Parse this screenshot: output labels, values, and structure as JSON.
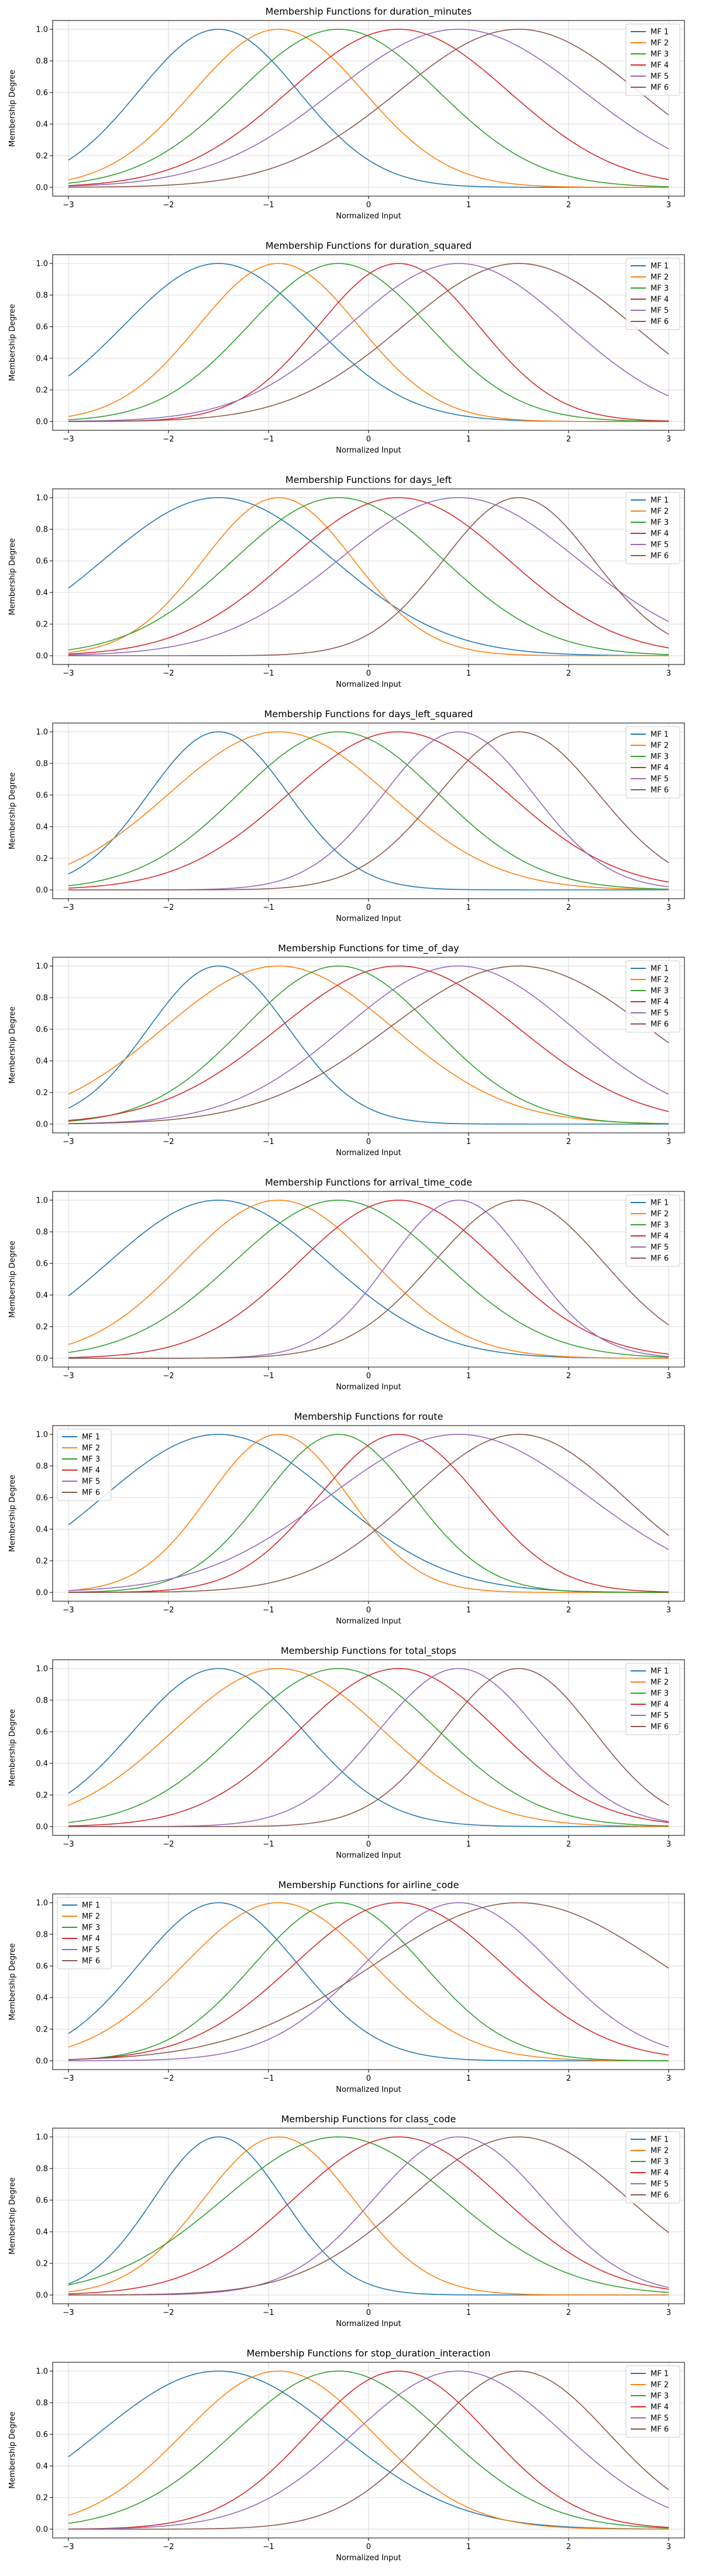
{
  "chart_data": [
    {
      "type": "line",
      "title": "Membership Functions for duration_minutes",
      "xlabel": "Normalized Input",
      "ylabel": "Membership Degree",
      "xlim": [
        -3,
        3
      ],
      "ylim": [
        0,
        1
      ],
      "x_ticks": [
        -3,
        -2,
        -1,
        0,
        1,
        2,
        3
      ],
      "y_ticks": [
        "0.0",
        "0.2",
        "0.4",
        "0.6",
        "0.8",
        "1.0"
      ],
      "grid": true,
      "legend": "upper right",
      "series": [
        {
          "name": "MF 1",
          "center": -1.5,
          "sigma": 0.8,
          "color": "#1f77b4"
        },
        {
          "name": "MF 2",
          "center": -0.9,
          "sigma": 0.85,
          "color": "#ff7f0e"
        },
        {
          "name": "MF 3",
          "center": -0.3,
          "sigma": 1.0,
          "color": "#2ca02c"
        },
        {
          "name": "MF 4",
          "center": 0.3,
          "sigma": 1.1,
          "color": "#d62728"
        },
        {
          "name": "MF 5",
          "center": 0.9,
          "sigma": 1.25,
          "color": "#9467bd"
        },
        {
          "name": "MF 6",
          "center": 1.5,
          "sigma": 1.2,
          "color": "#8c564b"
        }
      ]
    },
    {
      "type": "line",
      "title": "Membership Functions for duration_squared",
      "xlabel": "Normalized Input",
      "ylabel": "Membership Degree",
      "xlim": [
        -3,
        3
      ],
      "ylim": [
        0,
        1
      ],
      "x_ticks": [
        -3,
        -2,
        -1,
        0,
        1,
        2,
        3
      ],
      "y_ticks": [
        "0.0",
        "0.2",
        "0.4",
        "0.6",
        "0.8",
        "1.0"
      ],
      "grid": true,
      "legend": "upper right",
      "series": [
        {
          "name": "MF 1",
          "center": -1.5,
          "sigma": 0.95,
          "color": "#1f77b4"
        },
        {
          "name": "MF 2",
          "center": -0.9,
          "sigma": 0.8,
          "color": "#ff7f0e"
        },
        {
          "name": "MF 3",
          "center": -0.3,
          "sigma": 0.9,
          "color": "#2ca02c"
        },
        {
          "name": "MF 4",
          "center": 0.3,
          "sigma": 0.8,
          "color": "#d62728"
        },
        {
          "name": "MF 5",
          "center": 0.9,
          "sigma": 1.1,
          "color": "#9467bd"
        },
        {
          "name": "MF 6",
          "center": 1.5,
          "sigma": 1.15,
          "color": "#8c564b"
        }
      ]
    },
    {
      "type": "line",
      "title": "Membership Functions for days_left",
      "xlabel": "Normalized Input",
      "ylabel": "Membership Degree",
      "xlim": [
        -3,
        3
      ],
      "ylim": [
        0,
        1
      ],
      "x_ticks": [
        -3,
        -2,
        -1,
        0,
        1,
        2,
        3
      ],
      "y_ticks": [
        "0.0",
        "0.2",
        "0.4",
        "0.6",
        "0.8",
        "1.0"
      ],
      "grid": true,
      "legend": "upper right",
      "series": [
        {
          "name": "MF 1",
          "center": -1.5,
          "sigma": 1.15,
          "color": "#1f77b4"
        },
        {
          "name": "MF 2",
          "center": -0.9,
          "sigma": 0.75,
          "color": "#ff7f0e"
        },
        {
          "name": "MF 3",
          "center": -0.3,
          "sigma": 1.05,
          "color": "#2ca02c"
        },
        {
          "name": "MF 4",
          "center": 0.3,
          "sigma": 1.1,
          "color": "#d62728"
        },
        {
          "name": "MF 5",
          "center": 0.9,
          "sigma": 1.2,
          "color": "#9467bd"
        },
        {
          "name": "MF 6",
          "center": 1.5,
          "sigma": 0.75,
          "color": "#8c564b"
        }
      ]
    },
    {
      "type": "line",
      "title": "Membership Functions for days_left_squared",
      "xlabel": "Normalized Input",
      "ylabel": "Membership Degree",
      "xlim": [
        -3,
        3
      ],
      "ylim": [
        0,
        1
      ],
      "x_ticks": [
        -3,
        -2,
        -1,
        0,
        1,
        2,
        3
      ],
      "y_ticks": [
        "0.0",
        "0.2",
        "0.4",
        "0.6",
        "0.8",
        "1.0"
      ],
      "grid": true,
      "legend": "upper right",
      "series": [
        {
          "name": "MF 1",
          "center": -1.5,
          "sigma": 0.7,
          "color": "#1f77b4"
        },
        {
          "name": "MF 2",
          "center": -0.9,
          "sigma": 1.1,
          "color": "#ff7f0e"
        },
        {
          "name": "MF 3",
          "center": -0.3,
          "sigma": 1.0,
          "color": "#2ca02c"
        },
        {
          "name": "MF 4",
          "center": 0.3,
          "sigma": 1.1,
          "color": "#d62728"
        },
        {
          "name": "MF 5",
          "center": 0.9,
          "sigma": 0.75,
          "color": "#9467bd"
        },
        {
          "name": "MF 6",
          "center": 1.5,
          "sigma": 0.8,
          "color": "#8c564b"
        }
      ]
    },
    {
      "type": "line",
      "title": "Membership Functions for time_of_day",
      "xlabel": "Normalized Input",
      "ylabel": "Membership Degree",
      "xlim": [
        -3,
        3
      ],
      "ylim": [
        0,
        1
      ],
      "x_ticks": [
        -3,
        -2,
        -1,
        0,
        1,
        2,
        3
      ],
      "y_ticks": [
        "0.0",
        "0.2",
        "0.4",
        "0.6",
        "0.8",
        "1.0"
      ],
      "grid": true,
      "legend": "upper right",
      "series": [
        {
          "name": "MF 1",
          "center": -1.5,
          "sigma": 0.7,
          "color": "#1f77b4"
        },
        {
          "name": "MF 2",
          "center": -0.9,
          "sigma": 1.15,
          "color": "#ff7f0e"
        },
        {
          "name": "MF 3",
          "center": -0.3,
          "sigma": 0.95,
          "color": "#2ca02c"
        },
        {
          "name": "MF 4",
          "center": 0.3,
          "sigma": 1.2,
          "color": "#d62728"
        },
        {
          "name": "MF 5",
          "center": 0.9,
          "sigma": 1.15,
          "color": "#9467bd"
        },
        {
          "name": "MF 6",
          "center": 1.5,
          "sigma": 1.3,
          "color": "#8c564b"
        }
      ]
    },
    {
      "type": "line",
      "title": "Membership Functions for arrival_time_code",
      "xlabel": "Normalized Input",
      "ylabel": "Membership Degree",
      "xlim": [
        -3,
        3
      ],
      "ylim": [
        0,
        1
      ],
      "x_ticks": [
        -3,
        -2,
        -1,
        0,
        1,
        2,
        3
      ],
      "y_ticks": [
        "0.0",
        "0.2",
        "0.4",
        "0.6",
        "0.8",
        "1.0"
      ],
      "grid": true,
      "legend": "upper right",
      "series": [
        {
          "name": "MF 1",
          "center": -1.5,
          "sigma": 1.1,
          "color": "#1f77b4"
        },
        {
          "name": "MF 2",
          "center": -0.9,
          "sigma": 0.95,
          "color": "#ff7f0e"
        },
        {
          "name": "MF 3",
          "center": -0.3,
          "sigma": 1.05,
          "color": "#2ca02c"
        },
        {
          "name": "MF 4",
          "center": 0.3,
          "sigma": 1.0,
          "color": "#d62728"
        },
        {
          "name": "MF 5",
          "center": 0.9,
          "sigma": 0.7,
          "color": "#9467bd"
        },
        {
          "name": "MF 6",
          "center": 1.5,
          "sigma": 0.85,
          "color": "#8c564b"
        }
      ]
    },
    {
      "type": "line",
      "title": "Membership Functions for route",
      "xlabel": "Normalized Input",
      "ylabel": "Membership Degree",
      "xlim": [
        -3,
        3
      ],
      "ylim": [
        0,
        1
      ],
      "x_ticks": [
        -3,
        -2,
        -1,
        0,
        1,
        2,
        3
      ],
      "y_ticks": [
        "0.0",
        "0.2",
        "0.4",
        "0.6",
        "0.8",
        "1.0"
      ],
      "grid": true,
      "legend": "upper left",
      "series": [
        {
          "name": "MF 1",
          "center": -1.5,
          "sigma": 1.15,
          "color": "#1f77b4"
        },
        {
          "name": "MF 2",
          "center": -0.9,
          "sigma": 0.7,
          "color": "#ff7f0e"
        },
        {
          "name": "MF 3",
          "center": -0.3,
          "sigma": 0.75,
          "color": "#2ca02c"
        },
        {
          "name": "MF 4",
          "center": 0.3,
          "sigma": 0.8,
          "color": "#d62728"
        },
        {
          "name": "MF 5",
          "center": 0.9,
          "sigma": 1.3,
          "color": "#9467bd"
        },
        {
          "name": "MF 6",
          "center": 1.5,
          "sigma": 1.05,
          "color": "#8c564b"
        }
      ]
    },
    {
      "type": "line",
      "title": "Membership Functions for total_stops",
      "xlabel": "Normalized Input",
      "ylabel": "Membership Degree",
      "xlim": [
        -3,
        3
      ],
      "ylim": [
        0,
        1
      ],
      "x_ticks": [
        -3,
        -2,
        -1,
        0,
        1,
        2,
        3
      ],
      "y_ticks": [
        "0.0",
        "0.2",
        "0.4",
        "0.6",
        "0.8",
        "1.0"
      ],
      "grid": true,
      "legend": "upper right",
      "series": [
        {
          "name": "MF 1",
          "center": -1.5,
          "sigma": 0.85,
          "color": "#1f77b4"
        },
        {
          "name": "MF 2",
          "center": -0.9,
          "sigma": 1.05,
          "color": "#ff7f0e"
        },
        {
          "name": "MF 3",
          "center": -0.3,
          "sigma": 1.0,
          "color": "#2ca02c"
        },
        {
          "name": "MF 4",
          "center": 0.3,
          "sigma": 1.0,
          "color": "#d62728"
        },
        {
          "name": "MF 5",
          "center": 0.9,
          "sigma": 0.8,
          "color": "#9467bd"
        },
        {
          "name": "MF 6",
          "center": 1.5,
          "sigma": 0.75,
          "color": "#8c564b"
        }
      ]
    },
    {
      "type": "line",
      "title": "Membership Functions for airline_code",
      "xlabel": "Normalized Input",
      "ylabel": "Membership Degree",
      "xlim": [
        -3,
        3
      ],
      "ylim": [
        0,
        1
      ],
      "x_ticks": [
        -3,
        -2,
        -1,
        0,
        1,
        2,
        3
      ],
      "y_ticks": [
        "0.0",
        "0.2",
        "0.4",
        "0.6",
        "0.8",
        "1.0"
      ],
      "grid": true,
      "legend": "upper left",
      "series": [
        {
          "name": "MF 1",
          "center": -1.5,
          "sigma": 0.8,
          "color": "#1f77b4"
        },
        {
          "name": "MF 2",
          "center": -0.9,
          "sigma": 0.95,
          "color": "#ff7f0e"
        },
        {
          "name": "MF 3",
          "center": -0.3,
          "sigma": 0.85,
          "color": "#2ca02c"
        },
        {
          "name": "MF 4",
          "center": 0.3,
          "sigma": 1.05,
          "color": "#d62728"
        },
        {
          "name": "MF 5",
          "center": 0.9,
          "sigma": 0.95,
          "color": "#9467bd"
        },
        {
          "name": "MF 6",
          "center": 1.5,
          "sigma": 1.45,
          "color": "#8c564b"
        }
      ]
    },
    {
      "type": "line",
      "title": "Membership Functions for class_code",
      "xlabel": "Normalized Input",
      "ylabel": "Membership Degree",
      "xlim": [
        -3,
        3
      ],
      "ylim": [
        0,
        1
      ],
      "x_ticks": [
        -3,
        -2,
        -1,
        0,
        1,
        2,
        3
      ],
      "y_ticks": [
        "0.0",
        "0.2",
        "0.4",
        "0.6",
        "0.8",
        "1.0"
      ],
      "grid": true,
      "legend": "upper right",
      "series": [
        {
          "name": "MF 1",
          "center": -1.5,
          "sigma": 0.65,
          "color": "#1f77b4"
        },
        {
          "name": "MF 2",
          "center": -0.9,
          "sigma": 0.75,
          "color": "#ff7f0e"
        },
        {
          "name": "MF 3",
          "center": -0.3,
          "sigma": 1.15,
          "color": "#2ca02c"
        },
        {
          "name": "MF 4",
          "center": 0.3,
          "sigma": 1.05,
          "color": "#d62728"
        },
        {
          "name": "MF 5",
          "center": 0.9,
          "sigma": 0.85,
          "color": "#9467bd"
        },
        {
          "name": "MF 6",
          "center": 1.5,
          "sigma": 1.1,
          "color": "#8c564b"
        }
      ]
    },
    {
      "type": "line",
      "title": "Membership Functions for stop_duration_interaction",
      "xlabel": "Normalized Input",
      "ylabel": "Membership Degree",
      "xlim": [
        -3,
        3
      ],
      "ylim": [
        0,
        1
      ],
      "x_ticks": [
        -3,
        -2,
        -1,
        0,
        1,
        2,
        3
      ],
      "y_ticks": [
        "0.0",
        "0.2",
        "0.4",
        "0.6",
        "0.8",
        "1.0"
      ],
      "grid": true,
      "legend": "upper right",
      "series": [
        {
          "name": "MF 1",
          "center": -1.5,
          "sigma": 1.2,
          "color": "#1f77b4"
        },
        {
          "name": "MF 2",
          "center": -0.9,
          "sigma": 0.95,
          "color": "#ff7f0e"
        },
        {
          "name": "MF 3",
          "center": -0.3,
          "sigma": 1.05,
          "color": "#2ca02c"
        },
        {
          "name": "MF 4",
          "center": 0.3,
          "sigma": 0.9,
          "color": "#d62728"
        },
        {
          "name": "MF 5",
          "center": 0.9,
          "sigma": 1.05,
          "color": "#9467bd"
        },
        {
          "name": "MF 6",
          "center": 1.5,
          "sigma": 0.9,
          "color": "#8c564b"
        }
      ]
    }
  ]
}
